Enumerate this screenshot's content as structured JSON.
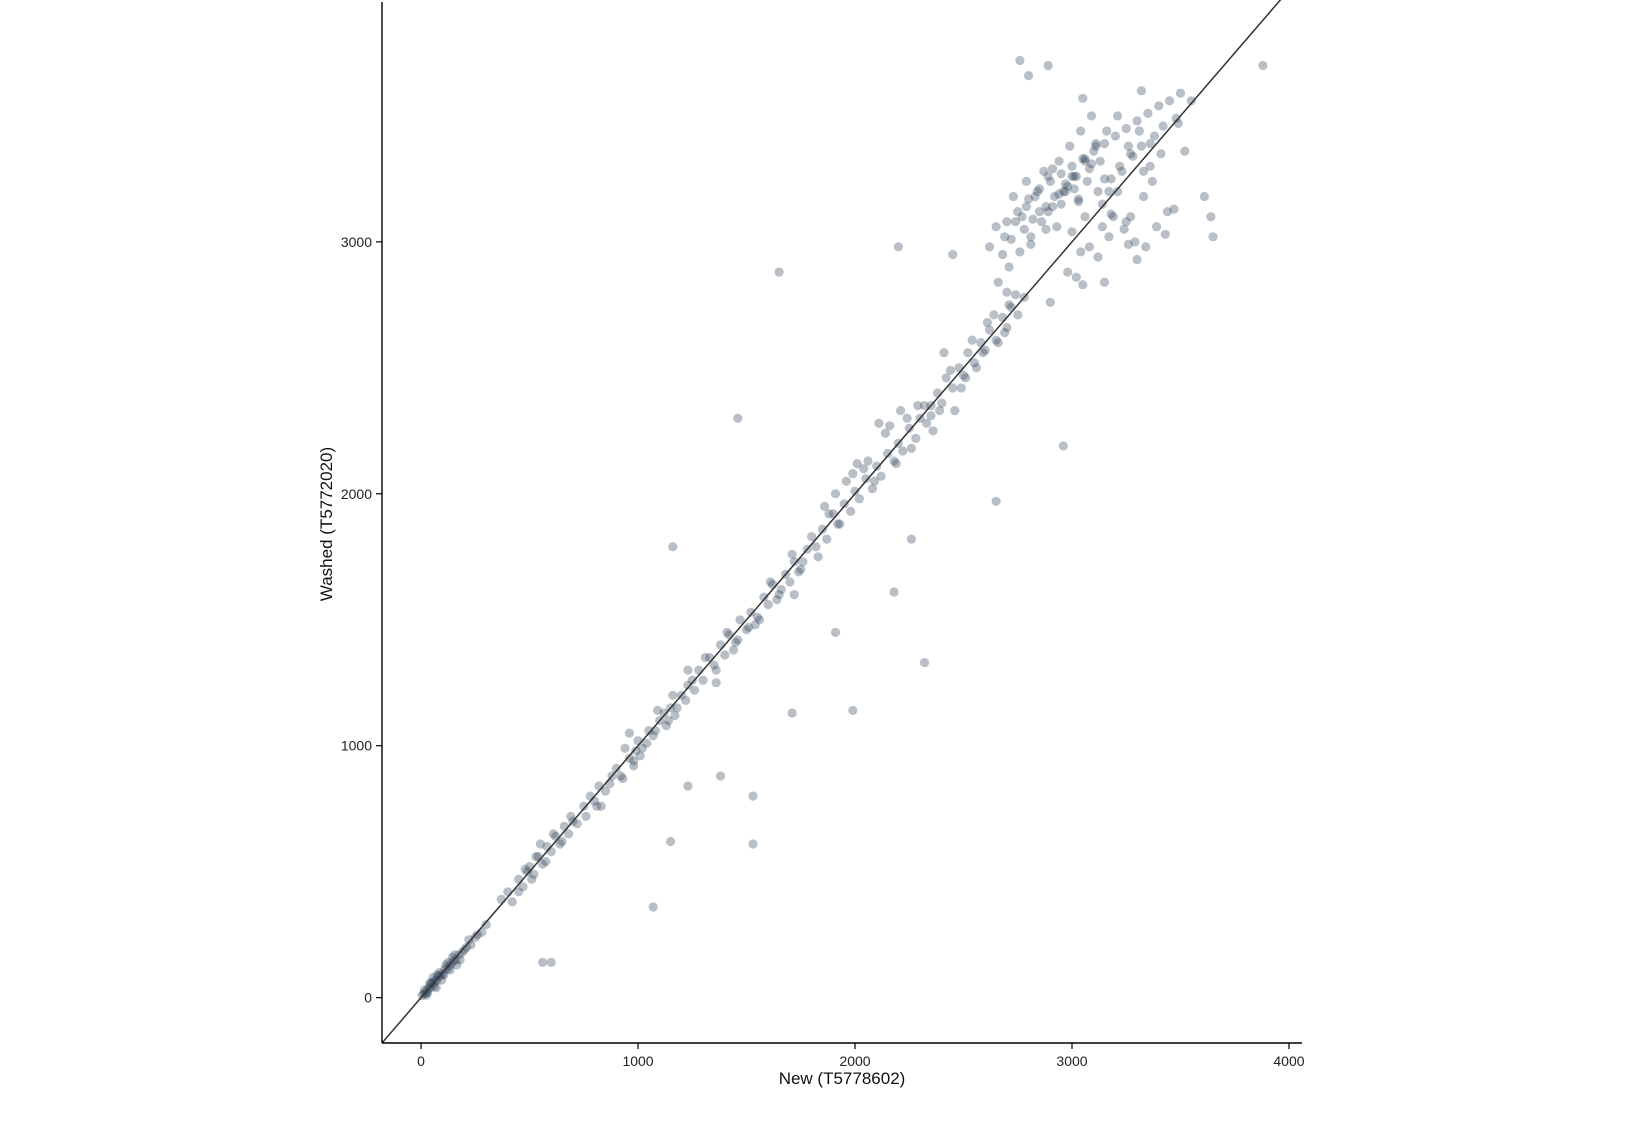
{
  "chart_data": {
    "type": "scatter",
    "xlabel": "New (T5778602)",
    "ylabel": "Washed (T5772020)",
    "xlim": [
      -180,
      4060
    ],
    "ylim": [
      -180,
      3960
    ],
    "xticks": [
      "0",
      "1000",
      "2000",
      "3000",
      "4000"
    ],
    "yticks": [
      "0",
      "1000",
      "2000",
      "3000"
    ],
    "xtick_values": [
      0,
      1000,
      2000,
      3000,
      4000
    ],
    "ytick_values": [
      0,
      1000,
      2000,
      3000
    ],
    "reference_line": {
      "slope": 1,
      "intercept": 0,
      "label": "identity (y = x)"
    },
    "grid": false,
    "legend": "none",
    "point_color": "#34495e",
    "point_opacity": 0.35,
    "series": [
      {
        "x": [
          5,
          12,
          20,
          28,
          35,
          42,
          50,
          58,
          65,
          72,
          80,
          90,
          100,
          110,
          120,
          130,
          140,
          150,
          160,
          175,
          190,
          210,
          230,
          250,
          280,
          300,
          15,
          30,
          45,
          60,
          75,
          95,
          115,
          135,
          155,
          180,
          200,
          220,
          260,
          25,
          55,
          85,
          105,
          125,
          145,
          165,
          70,
          40,
          370,
          400,
          420,
          450,
          470,
          490,
          500,
          520,
          540,
          560,
          580,
          600,
          620,
          640,
          660,
          680,
          700,
          450,
          480,
          510,
          530,
          550,
          575,
          610,
          650,
          690,
          720,
          750,
          780,
          800,
          820,
          850,
          880,
          900,
          930,
          960,
          990,
          1000,
          1020,
          1050,
          1070,
          1100,
          1130,
          1150,
          1170,
          1200,
          1220,
          1250,
          760,
          810,
          870,
          920,
          980,
          1040,
          1080,
          1120,
          1180,
          1230,
          940,
          1010,
          1090,
          1160,
          1260,
          830,
          960,
          1140,
          1280,
          1300,
          1330,
          1350,
          1380,
          1400,
          1420,
          1450,
          1470,
          1500,
          1520,
          1550,
          1580,
          1600,
          1620,
          1650,
          1680,
          1700,
          1720,
          1750,
          1780,
          1310,
          1360,
          1410,
          1460,
          1510,
          1560,
          1610,
          1660,
          1710,
          1760,
          1360,
          1440,
          1540,
          1640,
          1740,
          1800,
          1820,
          1850,
          1870,
          1900,
          1920,
          1950,
          1980,
          2000,
          2020,
          2050,
          2080,
          2100,
          2120,
          2150,
          2180,
          2200,
          2220,
          2250,
          2280,
          2300,
          1830,
          1880,
          1930,
          1990,
          2040,
          2090,
          2140,
          2190,
          2240,
          2290,
          1860,
          1960,
          2060,
          2160,
          2260,
          2110,
          2210,
          1910,
          2010,
          2320,
          2350,
          2380,
          2400,
          2420,
          2450,
          2480,
          2500,
          2520,
          2550,
          2580,
          2600,
          2620,
          2650,
          2680,
          2700,
          2720,
          2750,
          2330,
          2390,
          2440,
          2490,
          2540,
          2590,
          2640,
          2690,
          2740,
          2360,
          2460,
          2560,
          2660,
          2410,
          2510,
          2610,
          2710,
          2620,
          2650,
          2680,
          2700,
          2720,
          2750,
          2780,
          2800,
          2820,
          2850,
          2880,
          2900,
          2920,
          2950,
          2980,
          3000,
          3020,
          3050,
          3080,
          3100,
          3120,
          3150,
          3180,
          3200,
          3220,
          3250,
          3280,
          3300,
          3320,
          3350,
          3380,
          3400,
          3420,
          3450,
          3480,
          3500,
          2660,
          2710,
          2760,
          2810,
          2860,
          2910,
          2960,
          3010,
          3060,
          3110,
          3160,
          3210,
          3260,
          3310,
          3360,
          3410,
          2690,
          2740,
          2790,
          2840,
          2890,
          2940,
          2990,
          3040,
          3090,
          3140,
          3190,
          3240,
          3290,
          3340,
          3390,
          3440,
          2770,
          2830,
          2870,
          2930,
          2970,
          3030,
          3070,
          3130,
          3170,
          3230,
          3270,
          3330,
          3370,
          2730,
          2790,
          2850,
          2910,
          2970,
          3030,
          3090,
          3150,
          3210,
          3270,
          3330,
          2980,
          3040,
          3000,
          3060,
          3120,
          2950,
          3010,
          3080,
          3140,
          2890,
          2940,
          3000,
          3060,
          3110,
          3170,
          2810,
          2880,
          3020,
          3150,
          3250,
          3300,
          2700,
          2780,
          2900,
          3050,
          3180,
          3260,
          3520,
          3550,
          3610,
          3640,
          3650,
          3880,
          3490,
          3470,
          3360,
          3430,
          1460,
          1650,
          1990,
          2320,
          1530,
          1530,
          1070,
          560,
          600,
          2650,
          2960,
          2350,
          1230,
          980,
          1150,
          2180,
          2260,
          1380,
          1710,
          2800,
          1160,
          1720,
          1230,
          1910,
          2200,
          2760,
          2450,
          3050,
          2890,
          3320
        ],
        "y": [
          8,
          15,
          18,
          30,
          40,
          38,
          55,
          60,
          70,
          68,
          85,
          88,
          95,
          115,
          112,
          125,
          135,
          145,
          150,
          170,
          180,
          200,
          210,
          240,
          260,
          290,
          30,
          20,
          60,
          45,
          90,
          70,
          130,
          110,
          170,
          150,
          190,
          230,
          250,
          10,
          80,
          100,
          90,
          140,
          160,
          130,
          40,
          55,
          390,
          420,
          380,
          470,
          440,
          500,
          520,
          490,
          560,
          530,
          600,
          580,
          640,
          610,
          680,
          650,
          700,
          420,
          510,
          470,
          560,
          610,
          540,
          650,
          620,
          720,
          690,
          760,
          800,
          780,
          840,
          820,
          880,
          910,
          870,
          950,
          980,
          1020,
          990,
          1060,
          1040,
          1100,
          1080,
          1150,
          1120,
          1200,
          1180,
          1260,
          720,
          760,
          850,
          880,
          940,
          1010,
          1060,
          1130,
          1150,
          1240,
          990,
          960,
          1140,
          1200,
          1220,
          760,
          1050,
          1100,
          1300,
          1260,
          1350,
          1320,
          1400,
          1360,
          1440,
          1410,
          1500,
          1460,
          1530,
          1510,
          1590,
          1560,
          1640,
          1600,
          1680,
          1650,
          1730,
          1700,
          1780,
          1350,
          1300,
          1450,
          1420,
          1470,
          1500,
          1650,
          1620,
          1760,
          1730,
          1250,
          1380,
          1480,
          1580,
          1690,
          1830,
          1790,
          1860,
          1820,
          1920,
          1880,
          1960,
          1930,
          2010,
          1980,
          2060,
          2020,
          2110,
          2070,
          2160,
          2130,
          2200,
          2170,
          2260,
          2220,
          2300,
          1750,
          1920,
          1880,
          2080,
          2100,
          2050,
          2240,
          2120,
          2300,
          2350,
          1950,
          2050,
          2130,
          2270,
          2180,
          2280,
          2330,
          2000,
          2120,
          2350,
          2310,
          2400,
          2360,
          2460,
          2420,
          2500,
          2470,
          2560,
          2520,
          2600,
          2570,
          2650,
          2610,
          2700,
          2660,
          2740,
          2710,
          2280,
          2330,
          2490,
          2420,
          2610,
          2560,
          2710,
          2640,
          2790,
          2250,
          2330,
          2500,
          2600,
          2560,
          2460,
          2680,
          2750,
          2980,
          3060,
          2950,
          3080,
          3010,
          3120,
          3050,
          3170,
          3090,
          3210,
          3140,
          3240,
          3180,
          3270,
          3220,
          3300,
          3260,
          3330,
          3290,
          3360,
          3200,
          3390,
          3250,
          3420,
          3300,
          3450,
          3340,
          3480,
          3380,
          3510,
          3420,
          3540,
          3460,
          3560,
          3490,
          3590,
          2840,
          2900,
          2960,
          3020,
          3080,
          3140,
          3200,
          3260,
          3320,
          3380,
          3440,
          3500,
          3380,
          3440,
          3300,
          3350,
          3020,
          3080,
          3140,
          3200,
          3260,
          3320,
          3380,
          3440,
          3500,
          3150,
          3100,
          3050,
          3000,
          2980,
          3060,
          3120,
          3100,
          3180,
          3280,
          3060,
          3200,
          3160,
          3240,
          3320,
          3200,
          3280,
          3100,
          3180,
          3240,
          3180,
          3240,
          3120,
          3290,
          3230,
          3170,
          3310,
          3250,
          3200,
          3350,
          3280,
          2880,
          2960,
          3040,
          3100,
          2940,
          3150,
          3210,
          2980,
          3060,
          3120,
          3190,
          3260,
          3330,
          3390,
          3020,
          2990,
          3050,
          2860,
          2840,
          3080,
          2930,
          2800,
          2780,
          2760,
          2830,
          3110,
          2990,
          3360,
          3560,
          3180,
          3100,
          3020,
          3700,
          3470,
          3130,
          3390,
          3030,
          2300,
          2880,
          1140,
          1330,
          800,
          610,
          360,
          140,
          140,
          1970,
          2190,
          2350,
          840,
          920,
          620,
          1610,
          1820,
          880,
          1130,
          3660,
          1790,
          1600,
          1300,
          1450,
          2980,
          3720,
          2950,
          3570,
          3700,
          3600
        ]
      }
    ]
  }
}
